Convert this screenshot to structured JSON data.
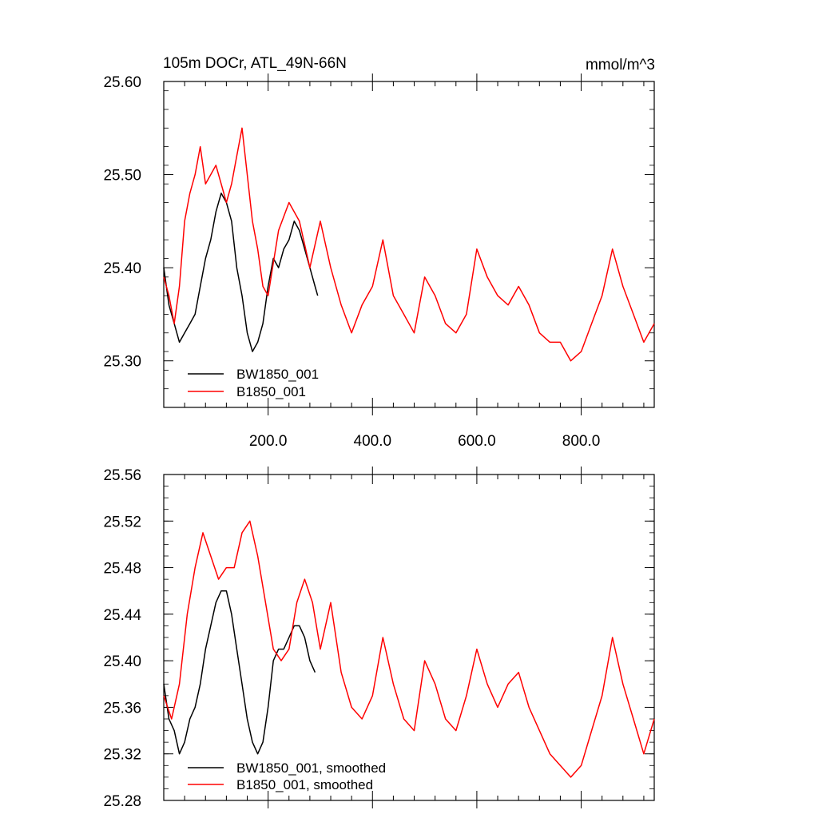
{
  "chart_data": [
    {
      "type": "line",
      "title": "105m DOCr, ATL_49N-66N",
      "units": "mmol/m^3",
      "xlim": [
        0,
        940
      ],
      "ylim": [
        25.25,
        25.6
      ],
      "xticks": [
        200,
        400,
        600,
        800
      ],
      "xtick_labels": [
        "200.0",
        "400.0",
        "600.0",
        "800.0"
      ],
      "yticks": [
        25.3,
        25.4,
        25.5,
        25.6
      ],
      "ytick_labels": [
        "25.30",
        "25.40",
        "25.50",
        "25.60"
      ],
      "legend_position": "bottom-left",
      "series": [
        {
          "name": "BW1850_001",
          "color": "#000000",
          "x": [
            0,
            10,
            20,
            30,
            40,
            50,
            60,
            70,
            80,
            90,
            100,
            110,
            120,
            130,
            140,
            150,
            160,
            170,
            180,
            190,
            200,
            210,
            220,
            230,
            240,
            250,
            260,
            270,
            280,
            290,
            295
          ],
          "y": [
            25.4,
            25.36,
            25.34,
            25.32,
            25.33,
            25.34,
            25.35,
            25.38,
            25.41,
            25.43,
            25.46,
            25.48,
            25.47,
            25.45,
            25.4,
            25.37,
            25.33,
            25.31,
            25.32,
            25.34,
            25.38,
            25.41,
            25.4,
            25.42,
            25.43,
            25.45,
            25.44,
            25.42,
            25.4,
            25.38,
            25.37
          ]
        },
        {
          "name": "B1850_001",
          "color": "#ff0000",
          "x": [
            0,
            10,
            20,
            30,
            40,
            50,
            60,
            70,
            80,
            90,
            100,
            110,
            120,
            130,
            140,
            150,
            160,
            170,
            180,
            190,
            200,
            220,
            240,
            260,
            280,
            300,
            320,
            340,
            360,
            380,
            400,
            420,
            440,
            460,
            480,
            500,
            520,
            540,
            560,
            580,
            600,
            620,
            640,
            660,
            680,
            700,
            720,
            740,
            760,
            780,
            800,
            820,
            840,
            860,
            880,
            900,
            920,
            940
          ],
          "y": [
            25.39,
            25.37,
            25.34,
            25.38,
            25.45,
            25.48,
            25.5,
            25.53,
            25.49,
            25.5,
            25.51,
            25.49,
            25.47,
            25.49,
            25.52,
            25.55,
            25.5,
            25.45,
            25.42,
            25.38,
            25.37,
            25.44,
            25.47,
            25.45,
            25.4,
            25.45,
            25.4,
            25.36,
            25.33,
            25.36,
            25.38,
            25.43,
            25.37,
            25.35,
            25.33,
            25.39,
            25.37,
            25.34,
            25.33,
            25.35,
            25.42,
            25.39,
            25.37,
            25.36,
            25.38,
            25.36,
            25.33,
            25.32,
            25.32,
            25.3,
            25.31,
            25.34,
            25.37,
            25.42,
            25.38,
            25.35,
            25.32,
            25.34
          ]
        }
      ]
    },
    {
      "type": "line",
      "xlim": [
        0,
        940
      ],
      "ylim": [
        25.28,
        25.56
      ],
      "yticks": [
        25.28,
        25.32,
        25.36,
        25.4,
        25.44,
        25.48,
        25.52,
        25.56
      ],
      "ytick_labels": [
        "25.28",
        "25.32",
        "25.36",
        "25.40",
        "25.44",
        "25.48",
        "25.52",
        "25.56"
      ],
      "legend_position": "bottom-left",
      "series": [
        {
          "name": "BW1850_001, smoothed",
          "color": "#000000",
          "x": [
            0,
            10,
            20,
            30,
            40,
            50,
            60,
            70,
            80,
            90,
            100,
            110,
            120,
            130,
            140,
            150,
            160,
            170,
            180,
            190,
            200,
            210,
            220,
            230,
            240,
            250,
            260,
            270,
            280,
            290
          ],
          "y": [
            25.38,
            25.35,
            25.34,
            25.32,
            25.33,
            25.35,
            25.36,
            25.38,
            25.41,
            25.43,
            25.45,
            25.46,
            25.46,
            25.44,
            25.41,
            25.38,
            25.35,
            25.33,
            25.32,
            25.33,
            25.36,
            25.4,
            25.41,
            25.41,
            25.42,
            25.43,
            25.43,
            25.42,
            25.4,
            25.39
          ]
        },
        {
          "name": "B1850_001, smoothed",
          "color": "#ff0000",
          "x": [
            0,
            15,
            30,
            45,
            60,
            75,
            90,
            105,
            120,
            135,
            150,
            165,
            180,
            195,
            210,
            225,
            240,
            255,
            270,
            285,
            300,
            320,
            340,
            360,
            380,
            400,
            420,
            440,
            460,
            480,
            500,
            520,
            540,
            560,
            580,
            600,
            620,
            640,
            660,
            680,
            700,
            720,
            740,
            760,
            780,
            800,
            820,
            840,
            860,
            880,
            900,
            920,
            940
          ],
          "y": [
            25.37,
            25.35,
            25.38,
            25.44,
            25.48,
            25.51,
            25.49,
            25.47,
            25.48,
            25.48,
            25.51,
            25.52,
            25.49,
            25.45,
            25.41,
            25.4,
            25.41,
            25.45,
            25.47,
            25.45,
            25.41,
            25.45,
            25.39,
            25.36,
            25.35,
            25.37,
            25.42,
            25.38,
            25.35,
            25.34,
            25.4,
            25.38,
            25.35,
            25.34,
            25.37,
            25.41,
            25.38,
            25.36,
            25.38,
            25.39,
            25.36,
            25.34,
            25.32,
            25.31,
            25.3,
            25.31,
            25.34,
            25.37,
            25.42,
            25.38,
            25.35,
            25.32,
            25.35
          ]
        }
      ]
    }
  ]
}
